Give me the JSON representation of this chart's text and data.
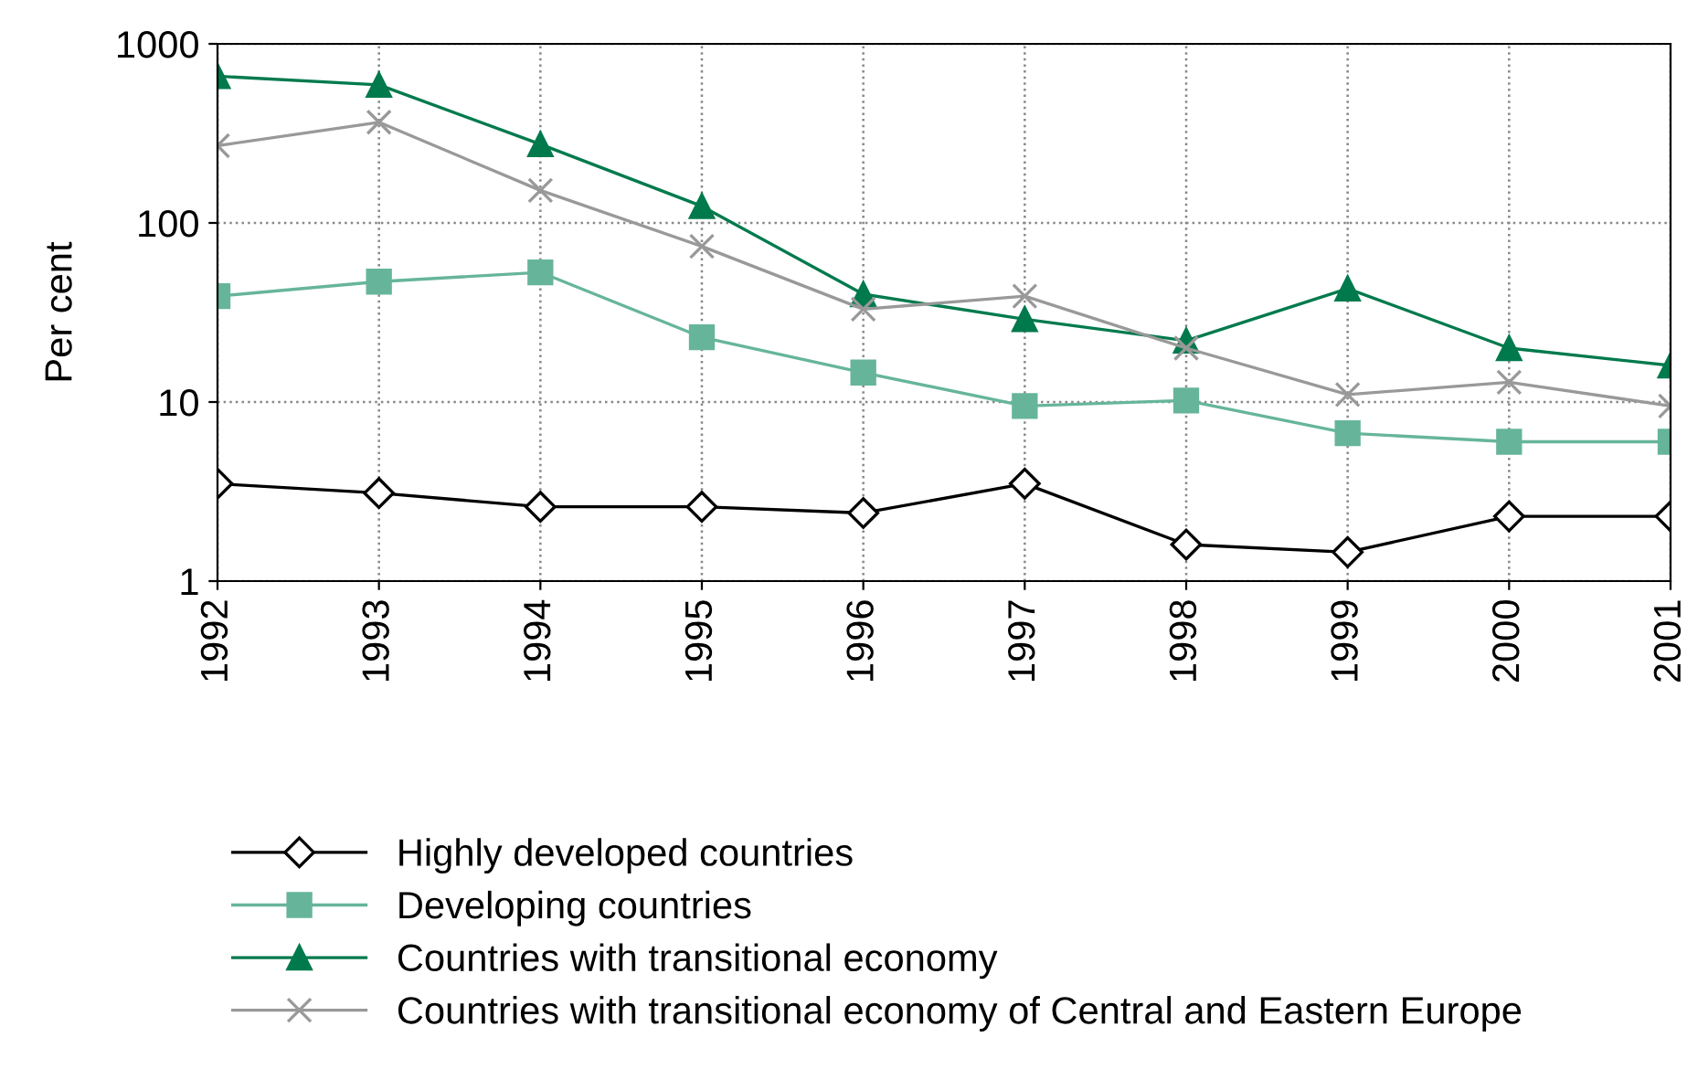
{
  "chart_data": {
    "type": "line",
    "ylabel": "Per cent",
    "log": "y",
    "ylim": [
      1,
      1000
    ],
    "yticks": [
      1,
      10,
      100,
      1000
    ],
    "grid": true,
    "legend": "bottom",
    "line_style": "solid",
    "categories": [
      "1992",
      "1993",
      "1994",
      "1995",
      "1996",
      "1997",
      "1998",
      "1999",
      "2000",
      "2001"
    ],
    "series": [
      {
        "name": "Highly developed countries",
        "color": "#000000",
        "marker": "diamond",
        "values": [
          3.5,
          3.1,
          2.6,
          2.6,
          2.4,
          3.5,
          1.6,
          1.45,
          2.3,
          2.3
        ]
      },
      {
        "name": "Developing countries",
        "color": "#66b59a",
        "marker": "square",
        "values": [
          39,
          47,
          53,
          23,
          14.6,
          9.5,
          10.2,
          6.7,
          6,
          6
        ]
      },
      {
        "name": "Countries with transitional economy",
        "color": "#007a4d",
        "marker": "triangle",
        "values": [
          660,
          590,
          275,
          124,
          40,
          29,
          22,
          43,
          20,
          16
        ]
      },
      {
        "name": "Countries with transitional economy of Central and Eastern Europe",
        "color": "#999999",
        "marker": "cross",
        "values": [
          270,
          365,
          152,
          74,
          33,
          39,
          20,
          11,
          12.9,
          9.5
        ]
      }
    ]
  }
}
